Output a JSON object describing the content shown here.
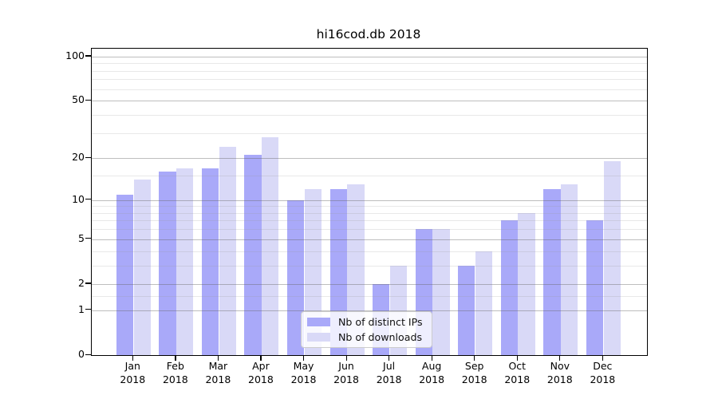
{
  "chart_data": {
    "type": "bar",
    "title": "hi16cod.db 2018",
    "categories": [
      "Jan",
      "Feb",
      "Mar",
      "Apr",
      "May",
      "Jun",
      "Jul",
      "Aug",
      "Sep",
      "Oct",
      "Nov",
      "Dec"
    ],
    "category_year": "2018",
    "series": [
      {
        "name": "Nb of distinct IPs",
        "color": "#a9a9f9",
        "values": [
          11,
          16,
          17,
          21,
          10,
          12,
          2,
          6,
          3,
          7,
          12,
          7
        ]
      },
      {
        "name": "Nb of downloads",
        "color": "#d9d9f7",
        "values": [
          14,
          17,
          24,
          28,
          12,
          13,
          3,
          6,
          4,
          8,
          13,
          19
        ]
      }
    ],
    "xlabel": "",
    "ylabel": "",
    "yscale": "log1p",
    "ylim": [
      0,
      113
    ],
    "ytick_values": [
      100,
      50,
      20,
      10,
      5,
      2,
      1,
      0
    ],
    "ytick_labels": [
      "100",
      "50",
      "20",
      "10",
      "5",
      "2",
      "1",
      "0"
    ],
    "grid": true,
    "grid_major_values": [
      1,
      2,
      5,
      10,
      20,
      50,
      100
    ],
    "grid_minor_values": [
      1.5,
      3,
      4,
      6,
      7,
      8,
      9,
      15,
      30,
      40,
      60,
      70,
      80,
      90
    ],
    "legend_position": "lower center"
  },
  "colors": {
    "bar_dark": "#a9a9f9",
    "bar_light": "#d9d9f7",
    "grid_major": "#b9b9b9",
    "grid_minor": "#e8e8e8",
    "axis": "#000000",
    "background": "#ffffff"
  }
}
